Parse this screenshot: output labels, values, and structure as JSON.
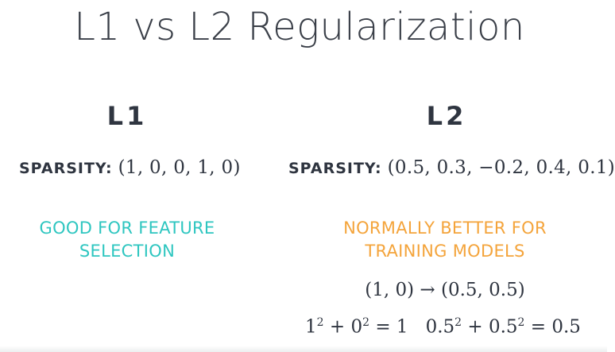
{
  "slide": {
    "title": "L1 vs L2 Regularization",
    "left_column": {
      "heading": "L1",
      "sparsity_label": "SPARSITY:",
      "sparsity_vector": "(1, 0, 0, 1, 0)",
      "note_line1": "GOOD FOR FEATURE",
      "note_line2": "SELECTION",
      "note_color": "#2ec6c0"
    },
    "right_column": {
      "heading": "L2",
      "sparsity_label": "SPARSITY:",
      "sparsity_vector": "(0.5, 0.3, −0.2, 0.4, 0.1)",
      "note_line1": "NORMALLY BETTER FOR",
      "note_line2": "TRAINING MODELS",
      "note_color": "#f4a43b",
      "mapping": "(1, 0) → (0.5, 0.5)",
      "norm_l1_base1": "1",
      "norm_l1_exp1": "2",
      "norm_l1_plus": " + ",
      "norm_l1_base2": "0",
      "norm_l1_exp2": "2",
      "norm_l1_result": " = 1",
      "norm_l2_base1": "0.5",
      "norm_l2_exp1": "2",
      "norm_l2_plus": " + ",
      "norm_l2_base2": "0.5",
      "norm_l2_exp2": "2",
      "norm_l2_result": " = 0.5"
    }
  }
}
